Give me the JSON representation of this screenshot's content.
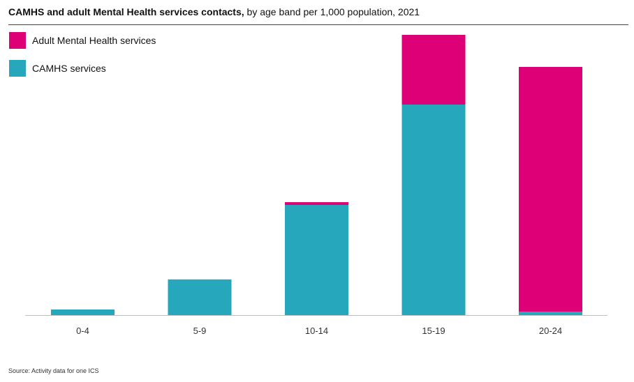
{
  "header": {
    "title_bold": "CAMHS and adult Mental Health services contacts,",
    "title_rest": " by age band per 1,000 population, 2021"
  },
  "legend": [
    {
      "label": "Adult Mental Health services",
      "color": "#DD0077"
    },
    {
      "label": "CAMHS services",
      "color": "#27A7BC"
    }
  ],
  "footer": {
    "source": "Source: Activity data for one ICS"
  },
  "chart_data": {
    "type": "bar",
    "stacked": true,
    "categories": [
      "0-4",
      "5-9",
      "10-14",
      "15-19",
      "20-24"
    ],
    "series": [
      {
        "name": "CAMHS services",
        "color": "#27A7BC",
        "values": [
          2,
          12.8,
          39.5,
          75.5,
          1.2
        ]
      },
      {
        "name": "Adult Mental Health services",
        "color": "#DD0077",
        "values": [
          0,
          0,
          1,
          25,
          87.8
        ]
      }
    ],
    "ylim": [
      0,
      100
    ],
    "grid": false,
    "legend_position": "top-left"
  }
}
